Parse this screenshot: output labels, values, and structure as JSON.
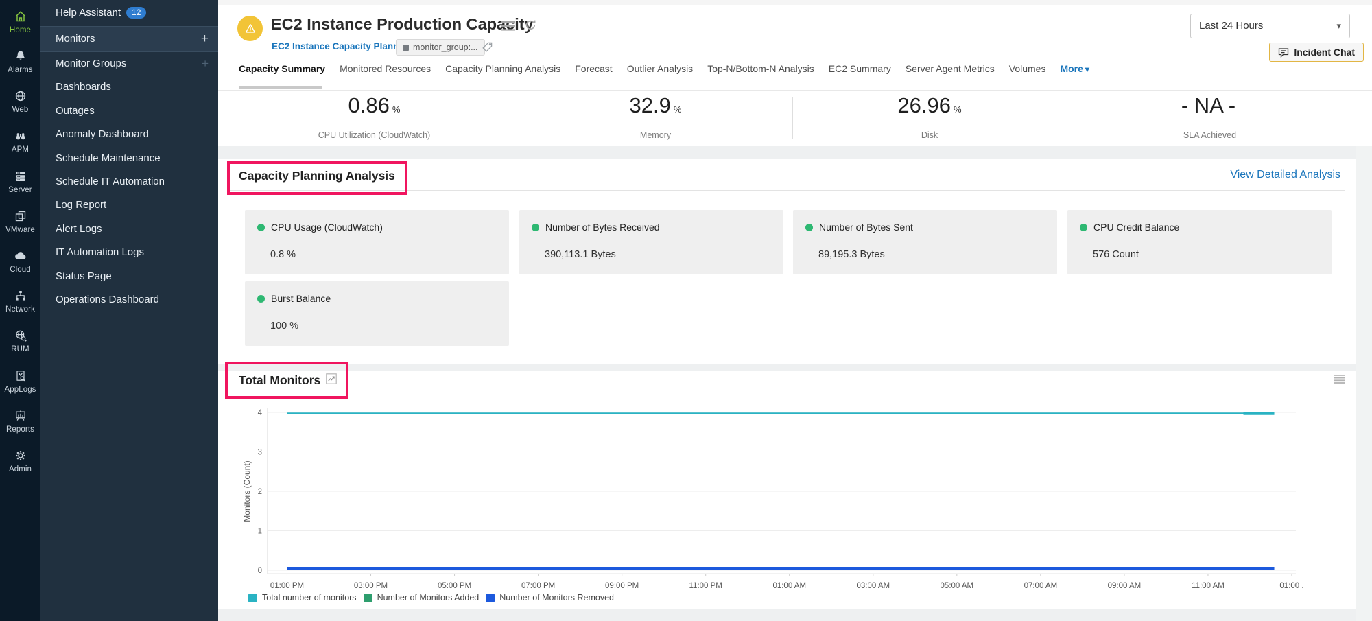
{
  "glyphs": {
    "plus": "+",
    "caret": "▾"
  },
  "rail": {
    "items": [
      {
        "label": "Home"
      },
      {
        "label": "Alarms"
      },
      {
        "label": "Web"
      },
      {
        "label": "APM"
      },
      {
        "label": "Server"
      },
      {
        "label": "VMware"
      },
      {
        "label": "Cloud"
      },
      {
        "label": "Network"
      },
      {
        "label": "RUM"
      },
      {
        "label": "AppLogs"
      },
      {
        "label": "Reports"
      },
      {
        "label": "Admin"
      }
    ]
  },
  "sidebar": {
    "help": {
      "label": "Help Assistant",
      "badge": "12"
    },
    "items": [
      {
        "label": "Monitors"
      },
      {
        "label": "Monitor Groups"
      },
      {
        "label": "Dashboards"
      },
      {
        "label": "Outages"
      },
      {
        "label": "Anomaly Dashboard"
      },
      {
        "label": "Schedule Maintenance"
      },
      {
        "label": "Schedule IT Automation"
      },
      {
        "label": "Log Report"
      },
      {
        "label": "Alert Logs"
      },
      {
        "label": "IT Automation Logs"
      },
      {
        "label": "Status Page"
      },
      {
        "label": "Operations Dashboard"
      }
    ]
  },
  "header": {
    "title": "EC2 Instance Production Capacity",
    "breadcrumb": "EC2 Instance Capacity Planning",
    "tag": "monitor_group:...",
    "time_range": "Last 24 Hours",
    "incident_chat": "Incident Chat"
  },
  "tabs": {
    "items": [
      {
        "label": "Capacity Summary"
      },
      {
        "label": "Monitored Resources"
      },
      {
        "label": "Capacity Planning Analysis"
      },
      {
        "label": "Forecast"
      },
      {
        "label": "Outlier Analysis"
      },
      {
        "label": "Top-N/Bottom-N Analysis"
      },
      {
        "label": "EC2 Summary"
      },
      {
        "label": "Server Agent Metrics"
      },
      {
        "label": "Volumes"
      },
      {
        "label": "More"
      }
    ]
  },
  "kpis": {
    "items": [
      {
        "value": "0.86",
        "unit": "%",
        "label": "CPU Utilization (CloudWatch)"
      },
      {
        "value": "32.9",
        "unit": "%",
        "label": "Memory"
      },
      {
        "value": "26.96",
        "unit": "%",
        "label": "Disk"
      },
      {
        "value": "- NA -",
        "unit": "",
        "label": "SLA Achieved"
      }
    ]
  },
  "capacity": {
    "title": "Capacity Planning Analysis",
    "link_label": "View Detailed Analysis",
    "cards": [
      {
        "label": "CPU Usage (CloudWatch)",
        "value": "0.8 %"
      },
      {
        "label": "Number of Bytes Received",
        "value": "390,113.1 Bytes"
      },
      {
        "label": "Number of Bytes Sent",
        "value": "89,195.3 Bytes"
      },
      {
        "label": "CPU Credit Balance",
        "value": "576 Count"
      },
      {
        "label": "Burst Balance",
        "value": "100 %"
      }
    ]
  },
  "monitors": {
    "title": "Total Monitors"
  },
  "chart_data": {
    "type": "line",
    "title": "Total Monitors",
    "xlabel": "",
    "ylabel": "Monitors (Count)",
    "ylim": [
      0,
      4
    ],
    "yticks": [
      0,
      1,
      2,
      3,
      4
    ],
    "x": [
      "01:00 PM",
      "03:00 PM",
      "05:00 PM",
      "07:00 PM",
      "09:00 PM",
      "11:00 PM",
      "01:00 AM",
      "03:00 AM",
      "05:00 AM",
      "07:00 AM",
      "09:00 AM",
      "11:00 AM",
      "01:00 ."
    ],
    "series": [
      {
        "name": "Total number of monitors",
        "color": "#2ab3c3",
        "values": [
          4,
          4,
          4,
          4,
          4,
          4,
          4,
          4,
          4,
          4,
          4,
          4,
          4
        ]
      },
      {
        "name": "Number of Monitors Added",
        "color": "#2e9e6e",
        "values": [
          0,
          0,
          0,
          0,
          0,
          0,
          0,
          0,
          0,
          0,
          0,
          0,
          0
        ]
      },
      {
        "name": "Number of Monitors Removed",
        "color": "#1c59dd",
        "values": [
          0,
          0,
          0,
          0,
          0,
          0,
          0,
          0,
          0,
          0,
          0,
          0,
          0
        ]
      }
    ],
    "legend_position": "bottom",
    "grid": true
  },
  "colors": {
    "highlight_pink": "#f0155f",
    "link_blue": "#1b76bc",
    "status_green": "#2eb872",
    "warning_yellow": "#f2c437",
    "series_teal": "#2ab3c3",
    "series_green": "#2e9e6e",
    "series_blue": "#1c59dd"
  }
}
